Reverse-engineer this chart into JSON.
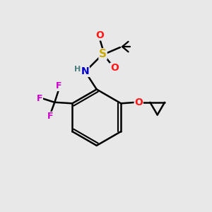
{
  "background_color": "#e8e8e8",
  "bond_color": "#000000",
  "bond_width": 1.8,
  "atom_colors": {
    "N": "#0000cc",
    "O": "#ff1a1a",
    "S": "#ccaa00",
    "F": "#cc00cc",
    "C": "#000000",
    "H": "#4a8080"
  },
  "figsize": [
    3.0,
    3.0
  ],
  "dpi": 100
}
